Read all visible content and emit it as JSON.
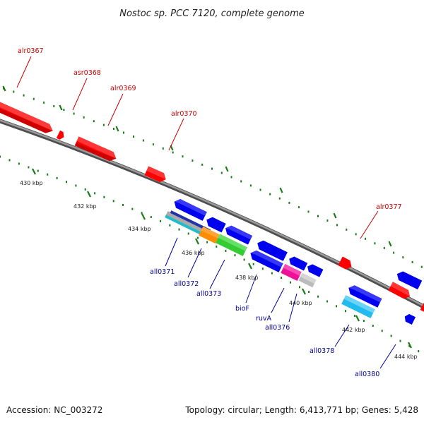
{
  "title": "Nostoc sp. PCC 7120, complete genome",
  "footer": {
    "accession": "Accession: NC_003272",
    "topology": "Topology: circular; Length: 6,413,771 bp; Genes: 5,428"
  },
  "colors": {
    "forward_label": "#cc0000",
    "reverse_label": "#000099",
    "backbone": "#808080",
    "ticks": "#1a7a1a"
  },
  "ticks": [
    {
      "label": "430 kbp",
      "kbp": 430
    },
    {
      "label": "432 kbp",
      "kbp": 432
    },
    {
      "label": "434 kbp",
      "kbp": 434
    },
    {
      "label": "436 kbp",
      "kbp": 436
    },
    {
      "label": "438 kbp",
      "kbp": 438
    },
    {
      "label": "440 kbp",
      "kbp": 440
    },
    {
      "label": "442 kbp",
      "kbp": 442
    },
    {
      "label": "444 kbp",
      "kbp": 444
    }
  ],
  "forward_labels": [
    {
      "text": "alr0367",
      "gene": "alr0367"
    },
    {
      "text": "asr0368",
      "gene": "asr0368"
    },
    {
      "text": "alr0369",
      "gene": "alr0369"
    },
    {
      "text": "alr0370",
      "gene": "alr0370"
    },
    {
      "text": "alr0377",
      "gene": "alr0377"
    }
  ],
  "reverse_labels": [
    {
      "text": "all0371",
      "gene": "all0371"
    },
    {
      "text": "all0372",
      "gene": "all0372"
    },
    {
      "text": "all0373",
      "gene": "all0373"
    },
    {
      "text": "bioF",
      "gene": "bioF"
    },
    {
      "text": "ruvA",
      "gene": "ruvA"
    },
    {
      "text": "all0376",
      "gene": "all0376"
    },
    {
      "text": "all0378",
      "gene": "all0378"
    },
    {
      "text": "all0380",
      "gene": "all0380"
    }
  ],
  "genes": [
    {
      "id": "alr0367",
      "strand": "forward",
      "color": "#ff0000"
    },
    {
      "id": "asr0368",
      "strand": "forward",
      "color": "#ff0000"
    },
    {
      "id": "alr0369",
      "strand": "forward",
      "color": "#ff0000"
    },
    {
      "id": "alr0370",
      "strand": "forward",
      "color": "#ff0000"
    },
    {
      "id": "alr0377",
      "strand": "forward",
      "color": "#ff0000"
    },
    {
      "id": "all0371",
      "strand": "reverse",
      "color": "#2222cc"
    },
    {
      "id": "all0372",
      "strand": "reverse",
      "color": "#ff8c00"
    },
    {
      "id": "all0373",
      "strand": "reverse",
      "color": "#33cc33"
    },
    {
      "id": "bioF",
      "strand": "reverse",
      "color": "#0000ee"
    },
    {
      "id": "ruvA",
      "strand": "reverse",
      "color": "#ee1199"
    },
    {
      "id": "all0376",
      "strand": "reverse",
      "color": "#0000ee"
    },
    {
      "id": "all0378",
      "strand": "reverse",
      "color": "#0000ee"
    },
    {
      "id": "all0380",
      "strand": "reverse",
      "color": "#0000ee"
    }
  ]
}
